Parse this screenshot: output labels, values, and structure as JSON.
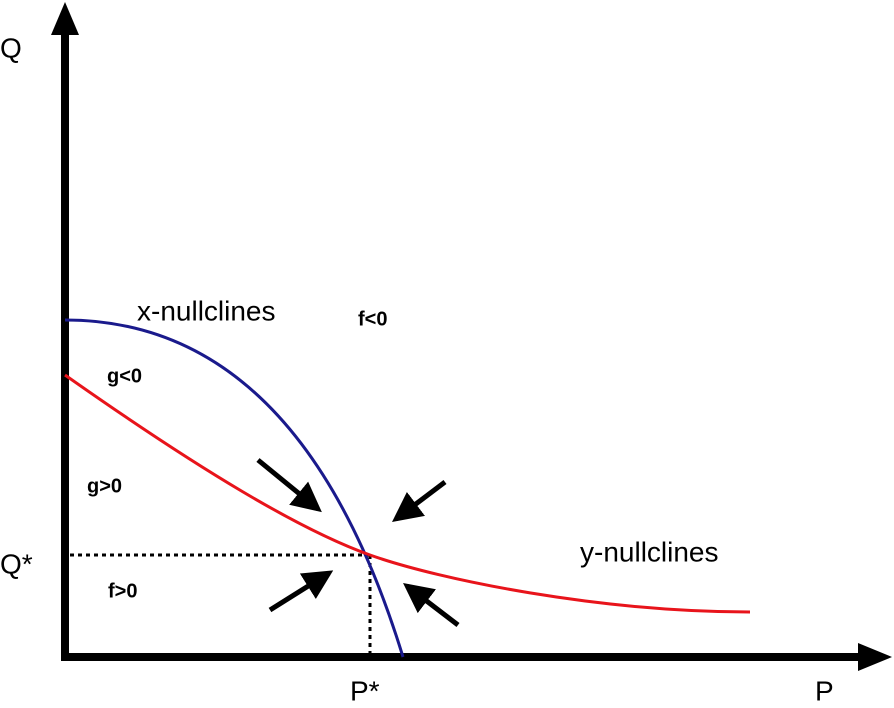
{
  "axes": {
    "y_label": "Q",
    "x_label": "P",
    "y_star": "Q*",
    "x_star": "P*"
  },
  "curves": {
    "x_nullcline": "x-nullclines",
    "y_nullcline": "y-nullclines"
  },
  "regions": {
    "f_negative": "f<0",
    "f_positive": "f>0",
    "g_negative": "g<0",
    "g_positive": "g>0"
  }
}
